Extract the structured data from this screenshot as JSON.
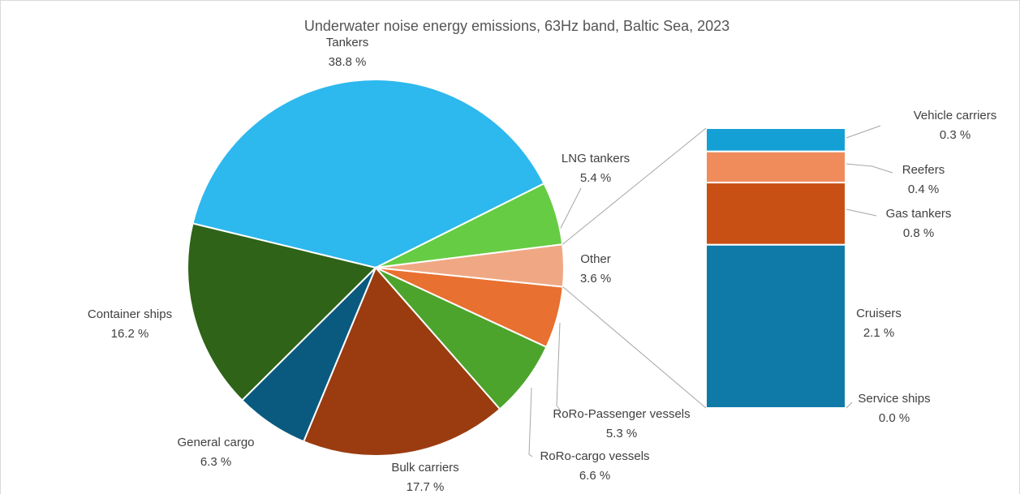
{
  "chart_data": {
    "type": "pie",
    "title": "Underwater noise energy emissions, 63Hz band, Baltic Sea, 2023",
    "categories": [
      "Tankers",
      "LNG tankers",
      "Other",
      "RoRo-Passenger vessels",
      "RoRo-cargo vessels",
      "Bulk carriers",
      "General cargo",
      "Container ships"
    ],
    "values": [
      38.8,
      5.4,
      3.6,
      5.3,
      6.6,
      17.7,
      6.3,
      16.2
    ],
    "value_labels": [
      "38.8 %",
      "5.4 %",
      "3.6 %",
      "5.3 %",
      "6.6 %",
      "17.7 %",
      "6.3 %",
      "16.2 %"
    ],
    "colors": [
      "#2db8ee",
      "#66cc44",
      "#f0a884",
      "#e87030",
      "#4ca42c",
      "#9a3c10",
      "#0a5a80",
      "#2e6318"
    ],
    "breakdown": {
      "categories": [
        "Vehicle carriers",
        "Reefers",
        "Gas tankers",
        "Cruisers",
        "Service ships"
      ],
      "values": [
        0.3,
        0.4,
        0.8,
        2.1,
        0.0
      ],
      "value_labels": [
        "0.3 %",
        "0.4 %",
        "0.8 %",
        "2.1 %",
        "0.0 %"
      ],
      "colors": [
        "#14a0d4",
        "#f08c5c",
        "#c85014",
        "#0f7aa8",
        "#4caf50"
      ]
    }
  }
}
